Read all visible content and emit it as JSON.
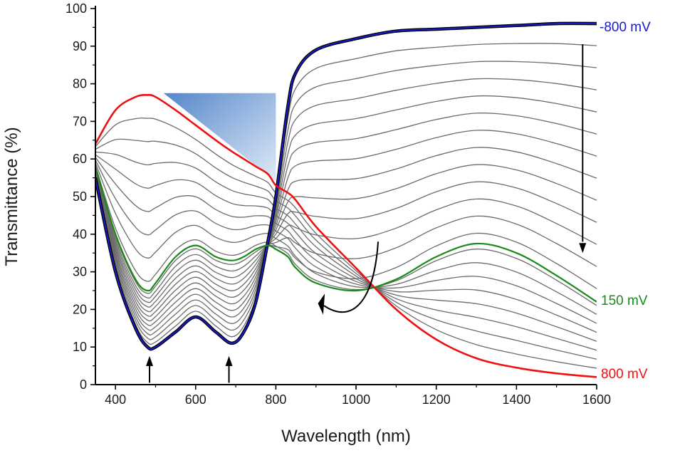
{
  "chart_data": {
    "type": "line",
    "title": "",
    "xlabel": "Wavelength (nm)",
    "ylabel": "Transmittance (%)",
    "xlim": [
      350,
      1600
    ],
    "ylim": [
      0,
      100
    ],
    "x_ticks": [
      400,
      600,
      800,
      1000,
      1200,
      1400,
      1600
    ],
    "y_ticks": [
      0,
      10,
      20,
      30,
      40,
      50,
      60,
      70,
      80,
      90,
      100
    ],
    "grid": false,
    "legend": "none",
    "x": [
      350,
      400,
      450,
      480,
      500,
      550,
      600,
      650,
      690,
      720,
      750,
      780,
      800,
      830,
      850,
      900,
      1000,
      1100,
      1200,
      1300,
      1400,
      1500,
      1600
    ],
    "colors": {
      "neg800": "#1a1acc",
      "mid150": "#1a8a1a",
      "pos800": "#ee1111",
      "gray": "#6b6b6b",
      "black": "#000000",
      "arrow": "#000000",
      "wedge": "#4a7fc8"
    },
    "series": [
      {
        "name": "-800 mV",
        "values": [
          55,
          30,
          15,
          10,
          10,
          14,
          18,
          14,
          11,
          14,
          22,
          38,
          50,
          74,
          83,
          89,
          92,
          94,
          94.5,
          95,
          95.5,
          96,
          96
        ]
      },
      {
        "name": "150 mV",
        "values": [
          58,
          40,
          28,
          25,
          27,
          34,
          37,
          34,
          33,
          34,
          36,
          37,
          36,
          34,
          31,
          27,
          25,
          28,
          34,
          37.5,
          35,
          29,
          22
        ]
      },
      {
        "name": "800 mV",
        "values": [
          64,
          73,
          76.5,
          77,
          76.5,
          73,
          69,
          65,
          62,
          60,
          58,
          56,
          53,
          51,
          49,
          42,
          31,
          20,
          12,
          7,
          4.5,
          3,
          2
        ]
      }
    ],
    "intermediate_curve_count": 20,
    "annotations": {
      "label_top": "-800 mV",
      "label_mid": "150 mV",
      "label_bottom": "800 mV"
    }
  }
}
